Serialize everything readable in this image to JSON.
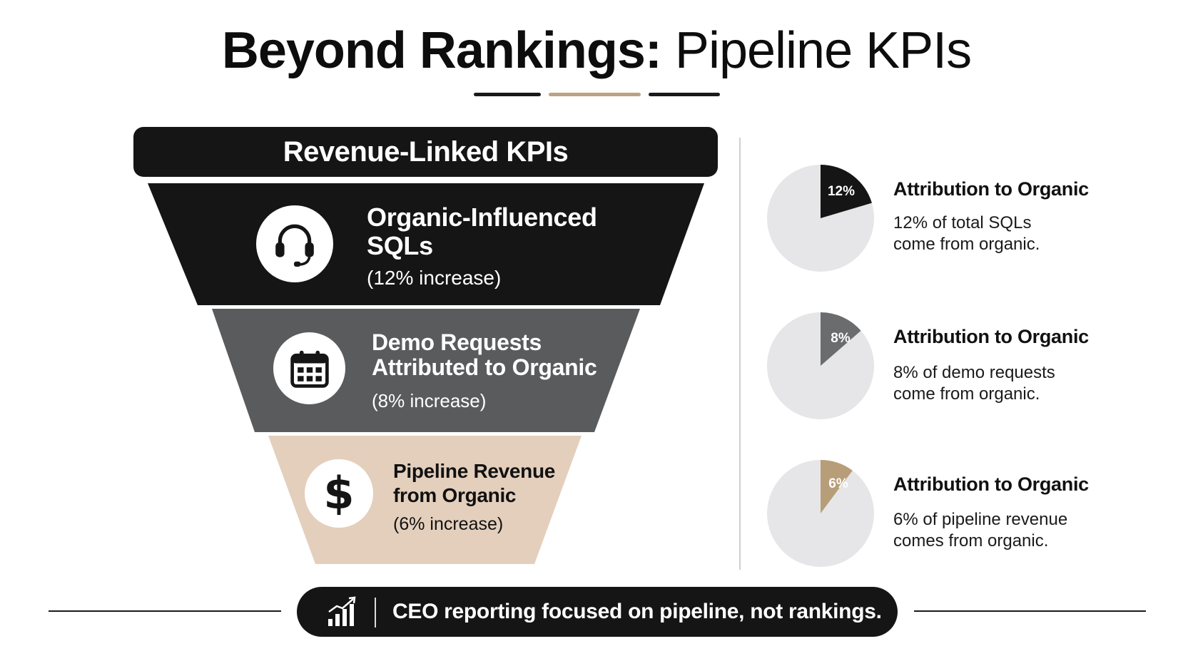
{
  "title": {
    "bold": "Beyond Rankings:",
    "light": "Pipeline KPIs"
  },
  "colors": {
    "dark": "#151515",
    "gray": "#5a5b5d",
    "tan": "#e3cfbc",
    "pie_track": "#e6e6e8",
    "pie_gray": "#6b6c6e",
    "pie_tan": "#b79e78"
  },
  "funnel": {
    "header": "Revenue-Linked KPIs",
    "tiers": [
      {
        "label_line1": "Organic-Influenced",
        "label_line2": "SQLs",
        "sub": "(12% increase)",
        "icon": "headset-icon"
      },
      {
        "label_line1": "Demo Requests",
        "label_line2": "Attributed to Organic",
        "sub": "(8% increase)",
        "icon": "calendar-icon"
      },
      {
        "label_line1": "Pipeline Revenue",
        "label_line2": "from Organic",
        "sub": "(6% increase)",
        "icon": "dollar-icon"
      }
    ]
  },
  "attribution": [
    {
      "title": "Attribution to Organic",
      "desc_line1": "12% of total SQLs",
      "desc_line2": "come from organic.",
      "percent_label": "12%",
      "percent": 12
    },
    {
      "title": "Attribution to Organic",
      "desc_line1": "8% of demo requests",
      "desc_line2": "come from organic.",
      "percent_label": "8%",
      "percent": 8
    },
    {
      "title": "Attribution to Organic",
      "desc_line1": "6% of pipeline revenue",
      "desc_line2": "comes from organic.",
      "percent_label": "6%",
      "percent": 6
    }
  ],
  "footer": {
    "text": "CEO reporting focused on pipeline, not rankings.",
    "icon": "bar-chart-up-icon"
  }
}
